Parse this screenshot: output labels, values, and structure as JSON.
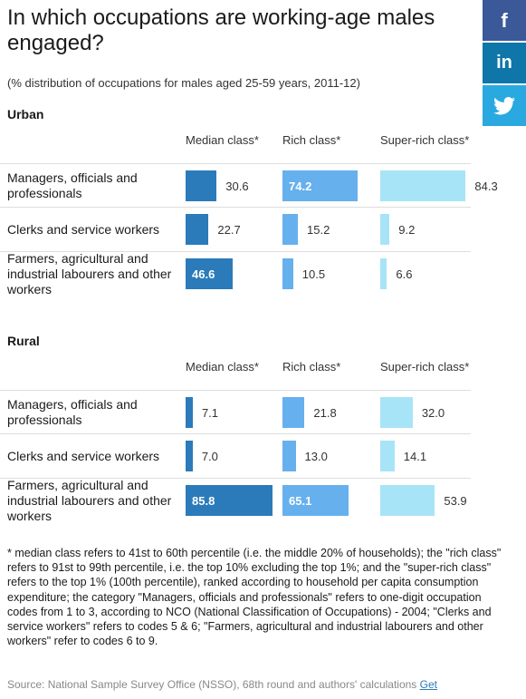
{
  "header": {
    "title": "In which occupations are working-age males engaged?",
    "subtitle": "(% distribution of occupations for males aged 25-59 years, 2011-12)"
  },
  "social": {
    "facebook": "f",
    "linkedin": "in",
    "twitter_icon": "twitter-bird-icon"
  },
  "colors": {
    "median": "#2b7bba",
    "rich": "#66b0ee",
    "superrich": "#a8e4f7"
  },
  "chart_data": [
    {
      "type": "bar",
      "title": "Urban",
      "categories": [
        "Managers, officials and professionals",
        "Clerks and service workers",
        "Farmers, agricultural and industrial labourers and other workers"
      ],
      "series": [
        {
          "name": "Median class*",
          "values": [
            30.6,
            22.7,
            46.6
          ]
        },
        {
          "name": "Rich class*",
          "values": [
            74.2,
            15.2,
            10.5
          ]
        },
        {
          "name": "Super-rich class*",
          "values": [
            84.3,
            9.2,
            6.6
          ]
        }
      ]
    },
    {
      "type": "bar",
      "title": "Rural",
      "categories": [
        "Managers, officials and professionals",
        "Clerks and service workers",
        "Farmers, agricultural and industrial labourers and other workers"
      ],
      "series": [
        {
          "name": "Median class*",
          "values": [
            7.1,
            7.0,
            85.8
          ]
        },
        {
          "name": "Rich class*",
          "values": [
            21.8,
            13.0,
            65.1
          ]
        },
        {
          "name": "Super-rich class*",
          "values": [
            32.0,
            14.1,
            53.9
          ]
        }
      ]
    }
  ],
  "footnote": "* median class refers to 41st to 60th percentile (i.e. the middle 20% of households); the \"rich class\" refers to 91st to 99th percentile, i.e. the top 10% excluding the top 1%; and the \"super-rich class\" refers to the top 1% (100th percentile), ranked according to household per capita consumption expenditure; the category \"Managers, officials and professionals\" refers to one-digit occupation codes from 1 to 3, according to NCO (National Classification of Occupations) - 2004; \"Clerks and service workers\" refers to codes 5 & 6; \"Farmers, agricultural and industrial labourers and other workers\" refer to codes 6 to 9.",
  "source": {
    "text": "Source: National Sample Survey Office (NSSO), 68th round and authors' calculations",
    "link": "Get"
  }
}
